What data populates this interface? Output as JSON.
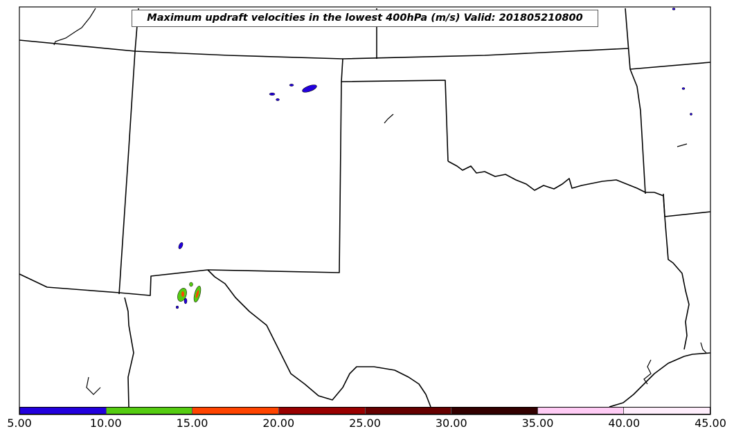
{
  "map": {
    "title": "Maximum updraft velocities in the lowest 400hPa (m/s) Valid: 201805210800"
  },
  "colorbar": {
    "segments": [
      {
        "min": 5,
        "max": 10,
        "color": "#2200dd"
      },
      {
        "min": 10,
        "max": 15,
        "color": "#55cc11"
      },
      {
        "min": 15,
        "max": 20,
        "color": "#ff4400"
      },
      {
        "min": 20,
        "max": 25,
        "color": "#990000"
      },
      {
        "min": 25,
        "max": 30,
        "color": "#660000"
      },
      {
        "min": 30,
        "max": 35,
        "color": "#330000"
      },
      {
        "min": 35,
        "max": 40,
        "color": "#ffccf5"
      },
      {
        "min": 40,
        "max": 45,
        "color": "#ffeefc"
      }
    ],
    "tick_labels": [
      "5.00",
      "10.00",
      "15.00",
      "20.00",
      "25.00",
      "30.00",
      "35.00",
      "40.00",
      "45.00"
    ]
  }
}
